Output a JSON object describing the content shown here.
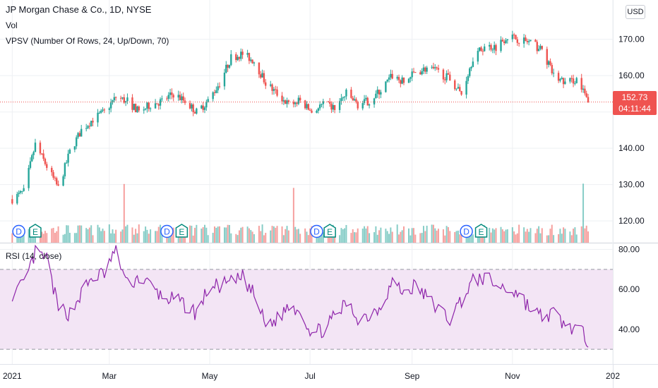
{
  "header": {
    "title": "JP Morgan Chase & Co., 1D, NYSE",
    "vol_label": "Vol",
    "vpsv_label": "VPSV (Number Of Rows, 24, Up/Down, 70)",
    "currency": "USD"
  },
  "last_price": {
    "value": "152.73",
    "countdown": "04:11:44"
  },
  "rsi_panel": {
    "label": "RSI (14, close)"
  },
  "colors": {
    "up": "#26a69a",
    "down": "#ef5350",
    "rsi_line": "#8e24aa",
    "rsi_band": "#f3e5f5",
    "grid": "#eef0f3",
    "dividend_marker": "#2962ff",
    "earnings_marker": "#00897b"
  },
  "markers": [
    {
      "letter": "D",
      "type": "dividend",
      "date": "2021-01-05"
    },
    {
      "letter": "E",
      "type": "earnings",
      "date": "2021-01-15"
    },
    {
      "letter": "D",
      "type": "dividend",
      "date": "2021-04-05"
    },
    {
      "letter": "E",
      "type": "earnings",
      "date": "2021-04-14"
    },
    {
      "letter": "D",
      "type": "dividend",
      "date": "2021-07-05"
    },
    {
      "letter": "E",
      "type": "earnings",
      "date": "2021-07-13"
    },
    {
      "letter": "D",
      "type": "dividend",
      "date": "2021-10-04"
    },
    {
      "letter": "E",
      "type": "earnings",
      "date": "2021-10-13"
    }
  ],
  "chart_data": [
    {
      "type": "candlestick",
      "title": "JP Morgan Chase & Co., 1D, NYSE",
      "y_axis": {
        "side": "right",
        "range": [
          114,
          175
        ],
        "ticks": [
          "120.00",
          "130.00",
          "140.00",
          "150.00",
          "160.00",
          "170.00"
        ]
      },
      "x_axis": {
        "ticks": [
          "2021",
          "Mar",
          "May",
          "Jul",
          "Sep",
          "Nov",
          "202"
        ]
      },
      "grid": true,
      "last_price": 152.73,
      "close_series": {
        "dates": [
          "2021-01-01",
          "2021-01-08",
          "2021-01-15",
          "2021-01-22",
          "2021-01-29",
          "2021-02-05",
          "2021-02-12",
          "2021-02-19",
          "2021-02-26",
          "2021-03-05",
          "2021-03-12",
          "2021-03-19",
          "2021-03-26",
          "2021-04-02",
          "2021-04-09",
          "2021-04-16",
          "2021-04-23",
          "2021-04-30",
          "2021-05-07",
          "2021-05-14",
          "2021-05-21",
          "2021-05-28",
          "2021-06-04",
          "2021-06-11",
          "2021-06-18",
          "2021-06-25",
          "2021-07-02",
          "2021-07-09",
          "2021-07-16",
          "2021-07-23",
          "2021-07-30",
          "2021-08-06",
          "2021-08-13",
          "2021-08-20",
          "2021-08-27",
          "2021-09-03",
          "2021-09-10",
          "2021-09-17",
          "2021-09-24",
          "2021-10-01",
          "2021-10-08",
          "2021-10-15",
          "2021-10-22",
          "2021-10-29",
          "2021-11-05",
          "2021-11-12",
          "2021-11-19",
          "2021-11-26",
          "2021-12-03",
          "2021-12-10",
          "2021-12-17"
        ],
        "values": [
          126,
          128,
          141,
          135,
          129,
          139,
          145,
          148,
          150,
          154,
          153,
          150,
          152,
          153,
          155,
          153,
          150,
          153,
          158,
          165,
          166,
          164,
          158,
          155,
          152,
          153,
          150,
          152,
          151,
          155,
          152,
          153,
          156,
          160,
          158,
          161,
          162,
          161,
          159,
          155,
          165,
          168,
          168,
          171,
          170,
          169,
          167,
          160,
          158,
          159,
          152.73
        ]
      },
      "volume": {
        "note": "daily volume histogram",
        "spike_dates": [
          "2021-03-10",
          "2021-06-21",
          "2021-12-14"
        ]
      }
    },
    {
      "type": "line",
      "title": "RSI (14, close)",
      "y_axis": {
        "side": "right",
        "ticks": [
          "40.00",
          "60.00",
          "80.00"
        ],
        "range": [
          23,
          83
        ]
      },
      "bands": {
        "upper": 70,
        "lower": 30
      },
      "x": [
        "2021-01-01",
        "2021-01-08",
        "2021-01-15",
        "2021-01-22",
        "2021-01-29",
        "2021-02-05",
        "2021-02-12",
        "2021-02-19",
        "2021-02-26",
        "2021-03-05",
        "2021-03-12",
        "2021-03-19",
        "2021-03-26",
        "2021-04-02",
        "2021-04-09",
        "2021-04-16",
        "2021-04-23",
        "2021-04-30",
        "2021-05-07",
        "2021-05-14",
        "2021-05-21",
        "2021-05-28",
        "2021-06-04",
        "2021-06-11",
        "2021-06-18",
        "2021-06-25",
        "2021-07-02",
        "2021-07-09",
        "2021-07-16",
        "2021-07-23",
        "2021-07-30",
        "2021-08-06",
        "2021-08-13",
        "2021-08-20",
        "2021-08-27",
        "2021-09-03",
        "2021-09-10",
        "2021-09-17",
        "2021-09-24",
        "2021-10-01",
        "2021-10-08",
        "2021-10-15",
        "2021-10-22",
        "2021-10-29",
        "2021-11-05",
        "2021-11-12",
        "2021-11-19",
        "2021-11-26",
        "2021-12-03",
        "2021-12-10",
        "2021-12-17"
      ],
      "values": [
        58,
        62,
        78,
        75,
        50,
        48,
        58,
        66,
        68,
        80,
        62,
        66,
        62,
        56,
        55,
        52,
        48,
        60,
        62,
        63,
        66,
        57,
        42,
        45,
        52,
        50,
        38,
        40,
        46,
        53,
        46,
        47,
        52,
        64,
        58,
        62,
        56,
        50,
        45,
        55,
        64,
        66,
        62,
        60,
        58,
        50,
        46,
        48,
        42,
        40,
        35
      ]
    }
  ]
}
